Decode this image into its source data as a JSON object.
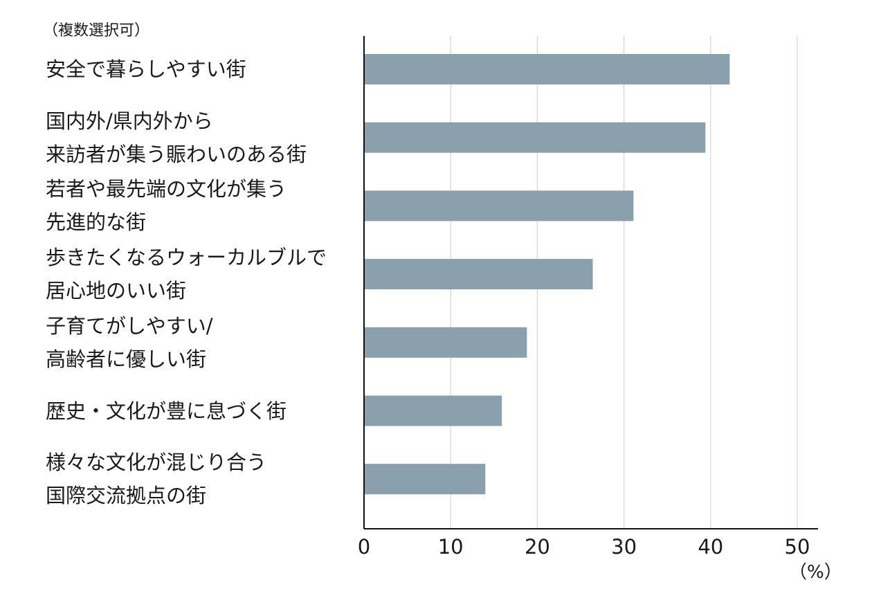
{
  "note": "（複数選択可）",
  "unit": "（%）",
  "colors": {
    "bar": "#8ba0ad",
    "grid": "#d4d4d4",
    "axis": "#111111"
  },
  "chart_data": {
    "type": "bar",
    "orientation": "horizontal",
    "title": "",
    "xlabel": "",
    "ylabel": "",
    "categories": [
      [
        "安全で暮らしやすい街"
      ],
      [
        "国内外/県内外から",
        "来訪者が集う賑わいのある街"
      ],
      [
        "若者や最先端の文化が集う",
        "先進的な街"
      ],
      [
        "歩きたくなるウォーカルブルで",
        "居心地のいい街"
      ],
      [
        "子育てがしやすい/",
        "高齢者に優しい街"
      ],
      [
        "歴史・文化が豊に息づく街"
      ],
      [
        "様々な文化が混じり合う",
        "国際交流拠点の街"
      ]
    ],
    "values": [
      42.2,
      39.4,
      31.1,
      26.4,
      18.8,
      15.9,
      14.0
    ],
    "xlim": [
      0,
      52
    ],
    "xticks": [
      0,
      10,
      20,
      30,
      40,
      50
    ],
    "grid": true
  }
}
